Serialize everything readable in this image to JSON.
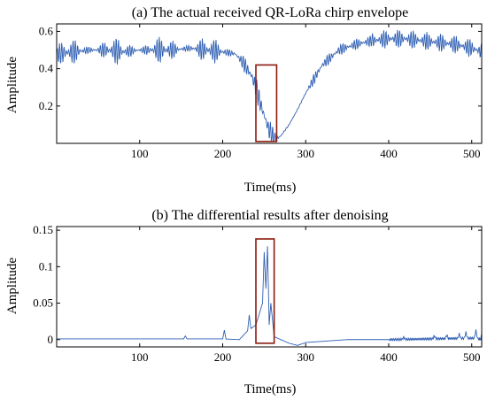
{
  "chart_data": [
    {
      "type": "line",
      "title": "(a) The actual received QR-LoRa chirp envelope",
      "xlabel": "Time(ms)",
      "ylabel": "Amplitude",
      "xlim": [
        0,
        512
      ],
      "ylim": [
        0,
        0.64
      ],
      "xticks": [
        100,
        200,
        300,
        400,
        500
      ],
      "yticks": [
        0.2,
        0.4,
        0.6
      ],
      "ytick_labels": [
        "0.2",
        "0.4",
        "0.6"
      ],
      "grid": false,
      "series_color": "#2f5fb3",
      "box_color": "#8b1a0e",
      "highlight_box": {
        "x": [
          240,
          265
        ],
        "y": [
          0.01,
          0.42
        ]
      },
      "series": [
        {
          "x": [
            0,
            20,
            40,
            60,
            80,
            100,
            120,
            140,
            160,
            180,
            200,
            215,
            225,
            235,
            240,
            245,
            250,
            255,
            262,
            270,
            280,
            290,
            300,
            320,
            340,
            360,
            380,
            400,
            420,
            440,
            460,
            480,
            500,
            512
          ],
          "y": [
            0.48,
            0.49,
            0.5,
            0.5,
            0.49,
            0.5,
            0.5,
            0.5,
            0.51,
            0.5,
            0.49,
            0.48,
            0.43,
            0.36,
            0.3,
            0.22,
            0.15,
            0.08,
            0.02,
            0.04,
            0.1,
            0.18,
            0.27,
            0.42,
            0.5,
            0.53,
            0.55,
            0.56,
            0.56,
            0.55,
            0.54,
            0.53,
            0.51,
            0.49
          ]
        }
      ]
    },
    {
      "type": "line",
      "title": "(b) The differential results after denoising",
      "xlabel": "Time(ms)",
      "ylabel": "Amplitude",
      "xlim": [
        0,
        512
      ],
      "ylim": [
        -0.01,
        0.155
      ],
      "xticks": [
        100,
        200,
        300,
        400,
        500
      ],
      "yticks": [
        0,
        0.05,
        0.1,
        0.15
      ],
      "ytick_labels": [
        "0",
        "0.05",
        "0.1",
        "0.15"
      ],
      "grid": false,
      "series_color": "#2f5fb3",
      "box_color": "#8b1a0e",
      "highlight_box": {
        "x": [
          240,
          262
        ],
        "y": [
          -0.005,
          0.138
        ]
      },
      "series": [
        {
          "x": [
            0,
            100,
            200,
            220,
            230,
            240,
            248,
            250,
            252,
            254,
            256,
            258,
            262,
            270,
            280,
            290,
            300,
            350,
            400,
            450,
            500,
            512
          ],
          "y": [
            0.001,
            0.001,
            0.001,
            0.0,
            0.012,
            0.02,
            0.05,
            0.12,
            0.07,
            0.128,
            0.02,
            0.05,
            0.004,
            0.0,
            -0.005,
            -0.008,
            -0.004,
            0.0,
            0.0,
            0.001,
            0.002,
            0.001
          ]
        }
      ]
    }
  ]
}
